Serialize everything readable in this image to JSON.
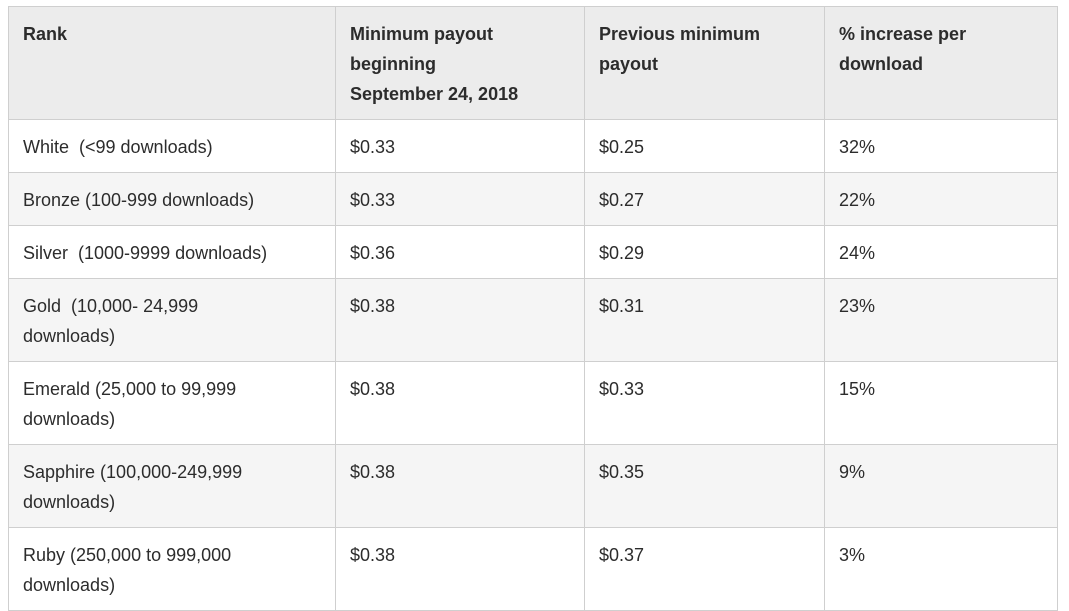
{
  "table": {
    "header": [
      "Rank",
      "Minimum payout beginning September 24, 2018",
      "Previous minimum payout",
      "% increase per download"
    ],
    "rows": [
      [
        "White  (<99 downloads)",
        "$0.33",
        "$0.25",
        "32%"
      ],
      [
        "Bronze (100-999 downloads)",
        "$0.33",
        "$0.27",
        "22%"
      ],
      [
        "Silver  (1000-9999 downloads)",
        "$0.36",
        "$0.29",
        "24%"
      ],
      [
        "Gold  (10,000- 24,999 downloads)",
        "$0.38",
        "$0.31",
        "23%"
      ],
      [
        "Emerald (25,000 to 99,999 downloads)",
        "$0.38",
        "$0.33",
        "15%"
      ],
      [
        "Sapphire (100,000-249,999 downloads)",
        "$0.38",
        "$0.35",
        "9%"
      ],
      [
        "Ruby (250,000 to 999,000 downloads)",
        "$0.38",
        "$0.37",
        "3%"
      ]
    ]
  }
}
